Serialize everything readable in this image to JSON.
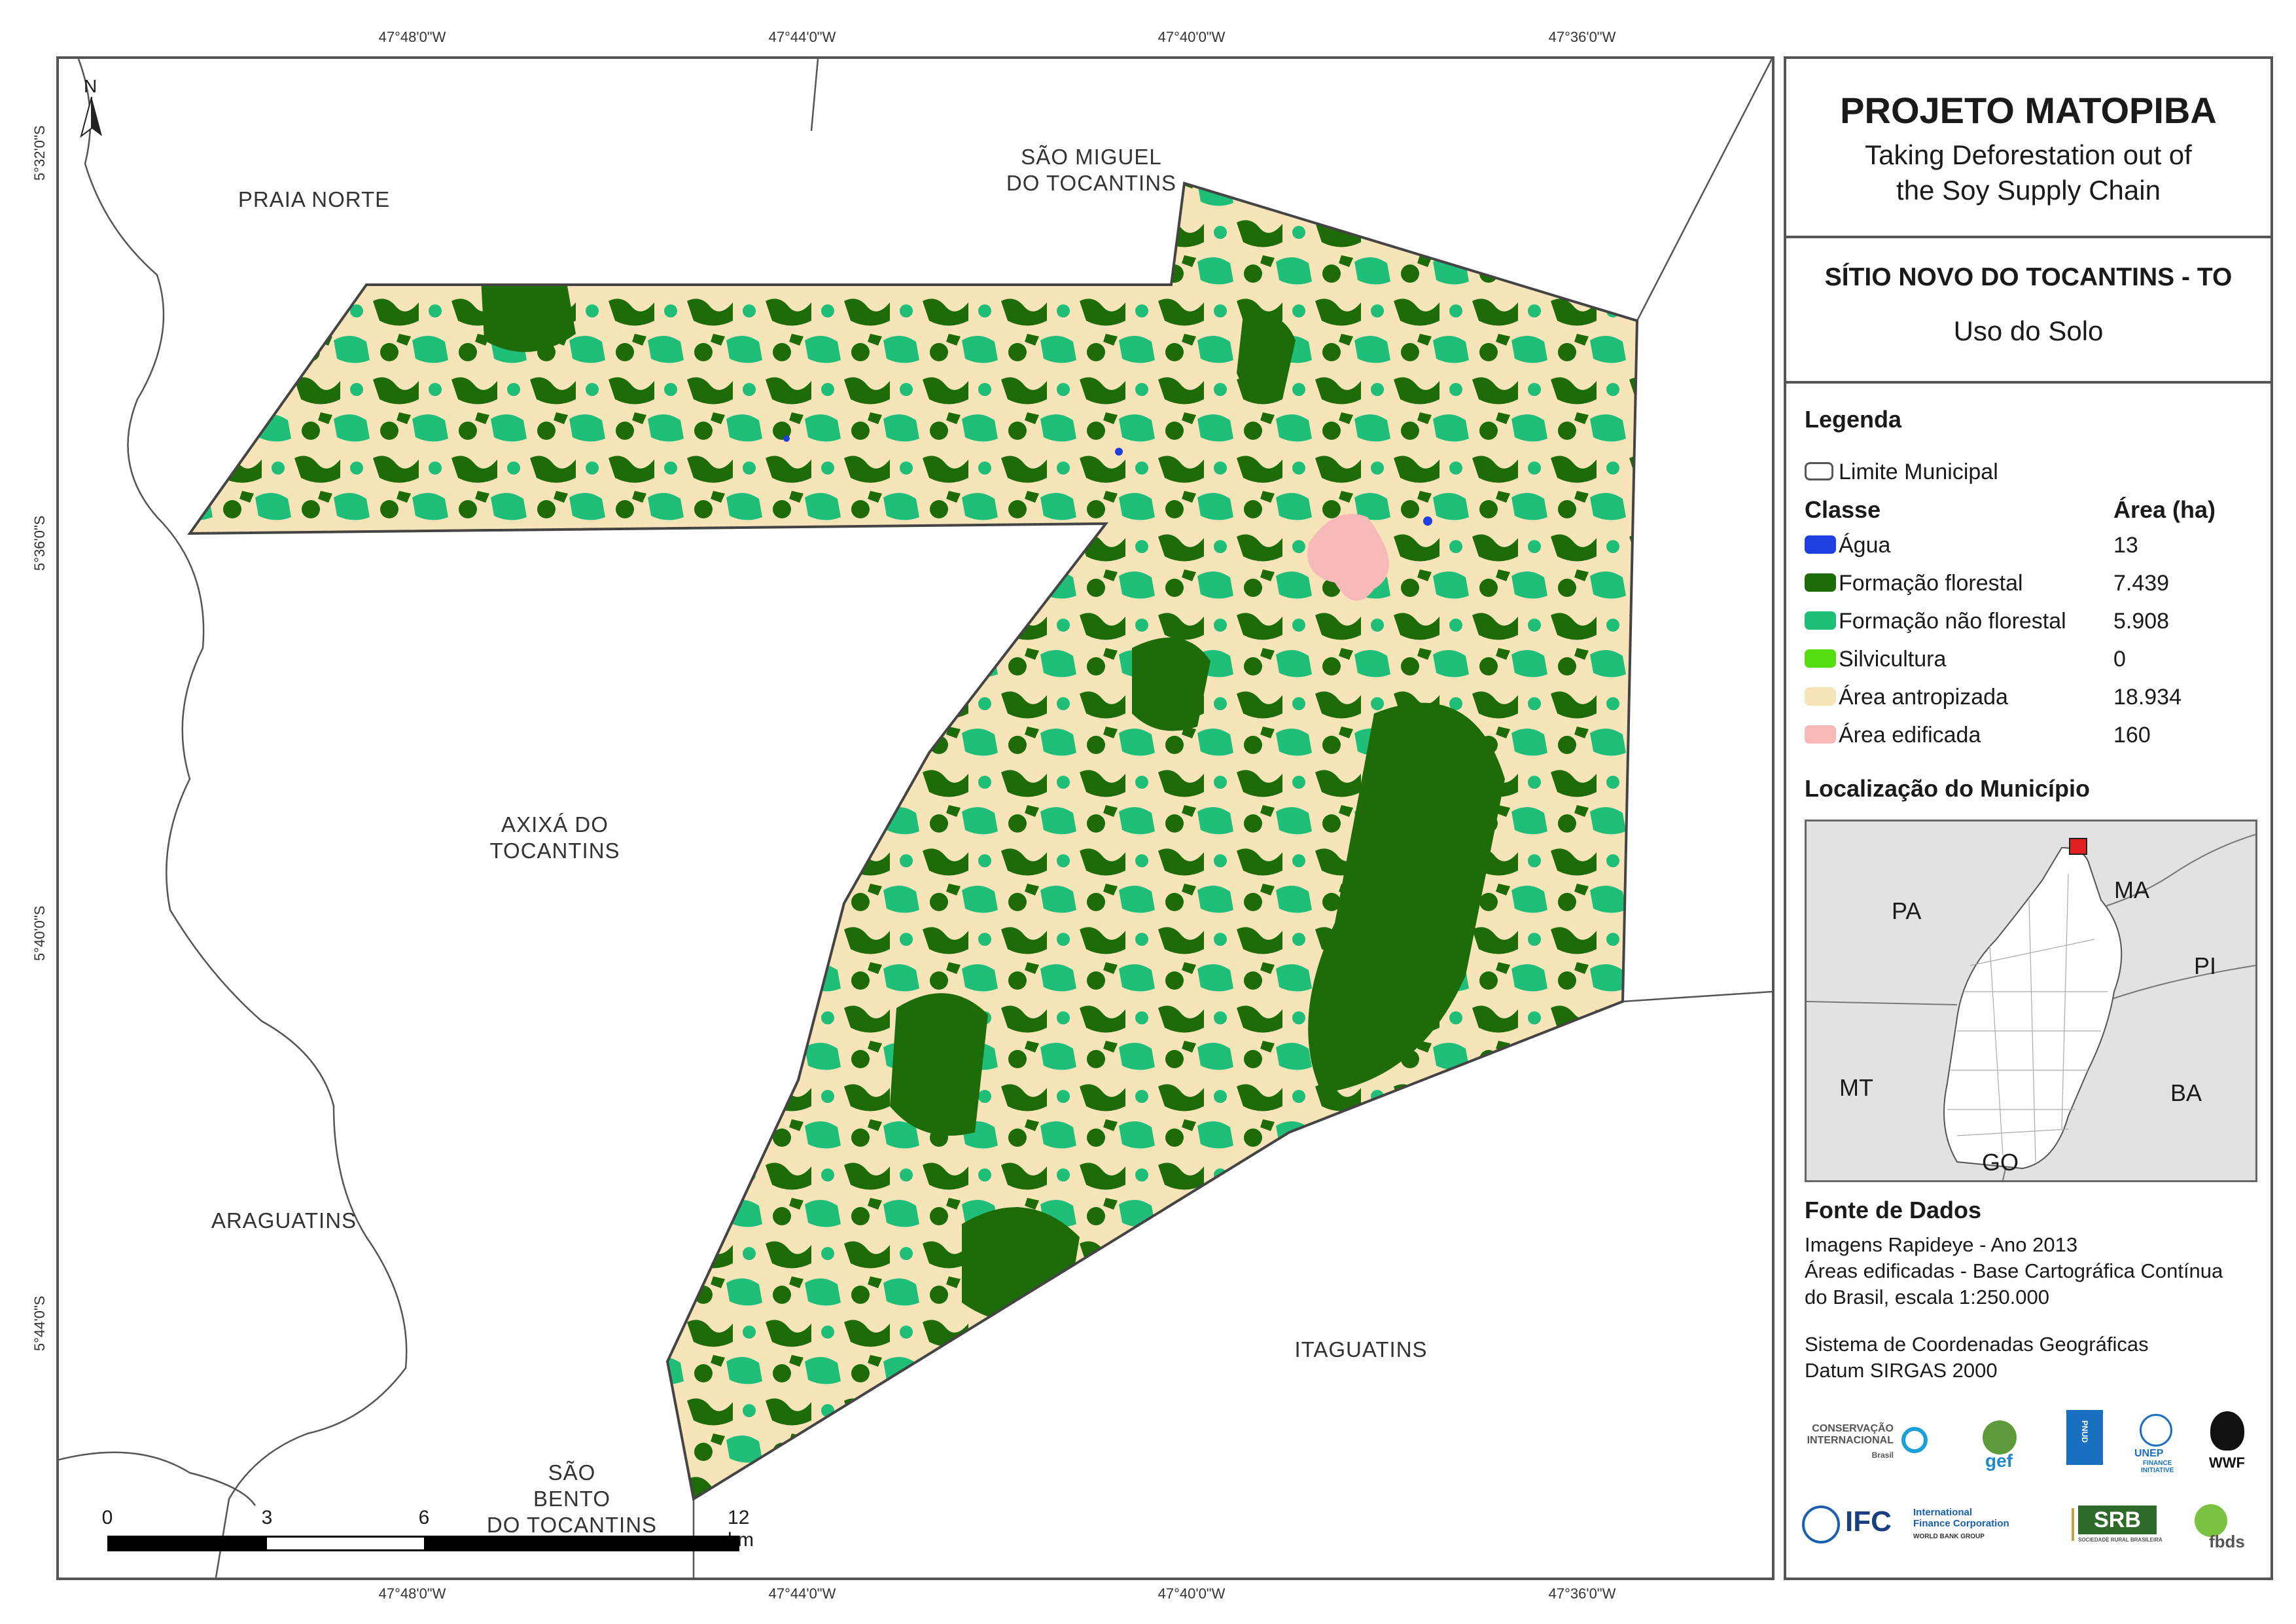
{
  "coordinates": {
    "top": [
      "47°48'0\"W",
      "47°44'0\"W",
      "47°40'0\"W",
      "47°36'0\"W"
    ],
    "bottom": [
      "47°48'0\"W",
      "47°44'0\"W",
      "47°40'0\"W",
      "47°36'0\"W"
    ],
    "left": [
      "5°32'0\"S",
      "5°36'0\"S",
      "5°40'0\"S",
      "5°44'0\"S"
    ]
  },
  "north_arrow": "N",
  "places": {
    "praia_norte": "PRAIA NORTE",
    "sao_miguel": "SÃO MIGUEL\nDO TOCANTINS",
    "axixa": "AXIXÁ DO\nTOCANTINS",
    "araguatins": "ARAGUATINS",
    "itaguatins": "ITAGUATINS",
    "sao_bento": "SÃO\nBENTO\nDO TOCANTINS"
  },
  "scale_bar": {
    "labels": [
      "0",
      "3",
      "6",
      "12 km"
    ]
  },
  "panel": {
    "title": "PROJETO MATOPIBA",
    "subtitle": "Taking Deforestation out of\nthe Soy Supply Chain",
    "municipality": "SÍTIO NOVO DO TOCANTINS - TO",
    "theme": "Uso do Solo"
  },
  "legend": {
    "heading": "Legenda",
    "boundary_label": "Limite Municipal",
    "class_header": "Classe",
    "area_header": "Área (ha)",
    "items": [
      {
        "label": "Água",
        "area": "13",
        "color": "#1f3fe0"
      },
      {
        "label": "Formação florestal",
        "area": "7.439",
        "color": "#1e6b0a"
      },
      {
        "label": "Formação não florestal",
        "area": "5.908",
        "color": "#1fbf7a"
      },
      {
        "label": "Silvicultura",
        "area": "0",
        "color": "#55dd11"
      },
      {
        "label": "Área antropizada",
        "area": "18.934",
        "color": "#f7e4b8"
      },
      {
        "label": "Área edificada",
        "area": "160",
        "color": "#f7b8b8"
      }
    ]
  },
  "location": {
    "heading": "Localização do Município",
    "states": [
      "PA",
      "MA",
      "PI",
      "MT",
      "BA",
      "GO"
    ]
  },
  "sources": {
    "heading": "Fonte de Dados",
    "text": "Imagens Rapideye - Ano 2013\nÁreas edificadas - Base Cartográfica Contínua\ndo Brasil, escala 1:250.000",
    "crs": "Sistema de Coordenadas Geográficas\nDatum SIRGAS 2000"
  },
  "logos": {
    "ci": "CONSERVAÇÃO\nINTERNACIONAL",
    "ci_country": "Brasil",
    "gef": "gef",
    "pnud": "PNUD",
    "unep": "UNEP",
    "unep_sub": "FINANCE\nINITIATIVE",
    "wwf": "WWF",
    "ifc": "IFC",
    "ifc_full": "International\nFinance Corporation",
    "ifc_group": "WORLD BANK GROUP",
    "srb": "SRB",
    "srb_sub": "SOCIEDADE RURAL BRASILEIRA",
    "fbds": "fbds"
  }
}
